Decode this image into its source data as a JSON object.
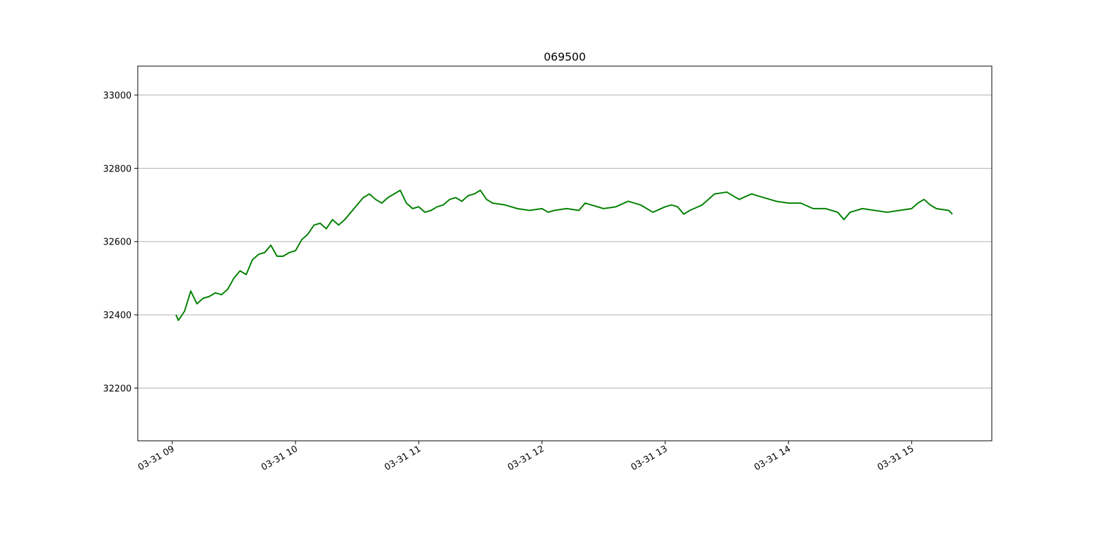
{
  "chart_data": {
    "type": "line",
    "title": "069500",
    "color": "#008000",
    "grid": true,
    "x": [
      9.03,
      9.05,
      9.1,
      9.15,
      9.2,
      9.25,
      9.3,
      9.35,
      9.4,
      9.45,
      9.5,
      9.55,
      9.6,
      9.65,
      9.7,
      9.75,
      9.8,
      9.85,
      9.9,
      9.95,
      10.0,
      10.05,
      10.1,
      10.15,
      10.2,
      10.25,
      10.3,
      10.35,
      10.4,
      10.45,
      10.5,
      10.55,
      10.6,
      10.65,
      10.7,
      10.75,
      10.8,
      10.85,
      10.9,
      10.95,
      11.0,
      11.05,
      11.1,
      11.15,
      11.2,
      11.25,
      11.3,
      11.35,
      11.4,
      11.45,
      11.5,
      11.55,
      11.6,
      11.7,
      11.8,
      11.9,
      12.0,
      12.05,
      12.1,
      12.2,
      12.3,
      12.35,
      12.4,
      12.5,
      12.6,
      12.7,
      12.8,
      12.9,
      13.0,
      13.05,
      13.1,
      13.15,
      13.2,
      13.3,
      13.4,
      13.5,
      13.6,
      13.7,
      13.8,
      13.9,
      14.0,
      14.1,
      14.2,
      14.3,
      14.4,
      14.45,
      14.5,
      14.6,
      14.7,
      14.8,
      14.9,
      15.0,
      15.05,
      15.1,
      15.15,
      15.2,
      15.3,
      15.33
    ],
    "values": [
      32400,
      32385,
      32410,
      32465,
      32430,
      32445,
      32450,
      32460,
      32455,
      32470,
      32500,
      32520,
      32510,
      32550,
      32565,
      32570,
      32590,
      32560,
      32560,
      32570,
      32575,
      32605,
      32620,
      32645,
      32650,
      32635,
      32660,
      32645,
      32660,
      32680,
      32700,
      32720,
      32730,
      32715,
      32705,
      32720,
      32730,
      32740,
      32705,
      32690,
      32695,
      32680,
      32685,
      32695,
      32700,
      32715,
      32720,
      32710,
      32725,
      32730,
      32740,
      32715,
      32705,
      32700,
      32690,
      32685,
      32690,
      32680,
      32685,
      32690,
      32685,
      32705,
      32700,
      32690,
      32695,
      32710,
      32700,
      32680,
      32695,
      32700,
      32695,
      32675,
      32685,
      32700,
      32730,
      32735,
      32715,
      32730,
      32720,
      32710,
      32705,
      32705,
      32690,
      32690,
      32680,
      32660,
      32680,
      32690,
      32685,
      32680,
      32685,
      32690,
      32705,
      32715,
      32700,
      32690,
      32685,
      32675
    ],
    "xlim": [
      8.72,
      15.65
    ],
    "xticks": [
      {
        "value": 9,
        "label": "03-31 09"
      },
      {
        "value": 10,
        "label": "03-31 10"
      },
      {
        "value": 11,
        "label": "03-31 11"
      },
      {
        "value": 12,
        "label": "03-31 12"
      },
      {
        "value": 13,
        "label": "03-31 13"
      },
      {
        "value": 14,
        "label": "03-31 14"
      },
      {
        "value": 15,
        "label": "03-31 15"
      }
    ],
    "ylim": [
      32056,
      33079
    ],
    "yticks": [
      32200,
      32400,
      32600,
      32800,
      33000
    ]
  }
}
